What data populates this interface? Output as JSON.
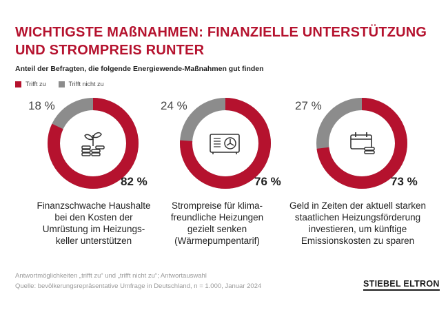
{
  "title": {
    "line1": "WICHTIGSTE MAßNAHMEN: FINANZIELLE UNTERSTÜTZUNG",
    "line2": "UND STROMPREIS RUNTER"
  },
  "subtitle": "Anteil der Befragten, die folgende Energiewende-Maßnahmen gut finden",
  "legend": [
    {
      "label": "Trifft zu",
      "color": "#b5122e"
    },
    {
      "label": "Trifft nicht zu",
      "color": "#8c8c8c"
    }
  ],
  "colors": {
    "accent": "#b5122e",
    "grey": "#8c8c8c",
    "icon": "#333333"
  },
  "chart_data": {
    "type": "donut",
    "series_names": [
      "Trifft zu",
      "Trifft nicht zu"
    ],
    "items": [
      {
        "yes": 82,
        "no": 18,
        "yes_label": "82 %",
        "no_label": "18 %",
        "icon": "money-plant-icon",
        "caption": [
          "Finanzschwache Haushalte",
          "bei den Kosten der",
          "Umrüstung im Heizungs-",
          "keller unterstützen"
        ]
      },
      {
        "yes": 76,
        "no": 24,
        "yes_label": "76 %",
        "no_label": "24 %",
        "icon": "heat-pump-icon",
        "caption": [
          "Strompreise für klima-",
          "freundliche Heizungen",
          "gezielt senken",
          "(Wärmepumpentarif)"
        ]
      },
      {
        "yes": 73,
        "no": 27,
        "yes_label": "73 %",
        "no_label": "27 %",
        "icon": "calendar-coins-icon",
        "caption": [
          "Geld in Zeiten der aktuell starken",
          "staatlichen Heizungsförderung",
          "investieren, um künftige",
          "Emissionskosten zu sparen"
        ]
      }
    ]
  },
  "footnote": {
    "line1": "Antwortmöglichkeiten „trifft zu“ und „trifft nicht zu“; Antwortauswahl",
    "line2": "Quelle: bevölkerungsrepräsentative Umfrage in Deutschland, n = 1.000, Januar 2024"
  },
  "logo": "STIEBEL ELTRON"
}
